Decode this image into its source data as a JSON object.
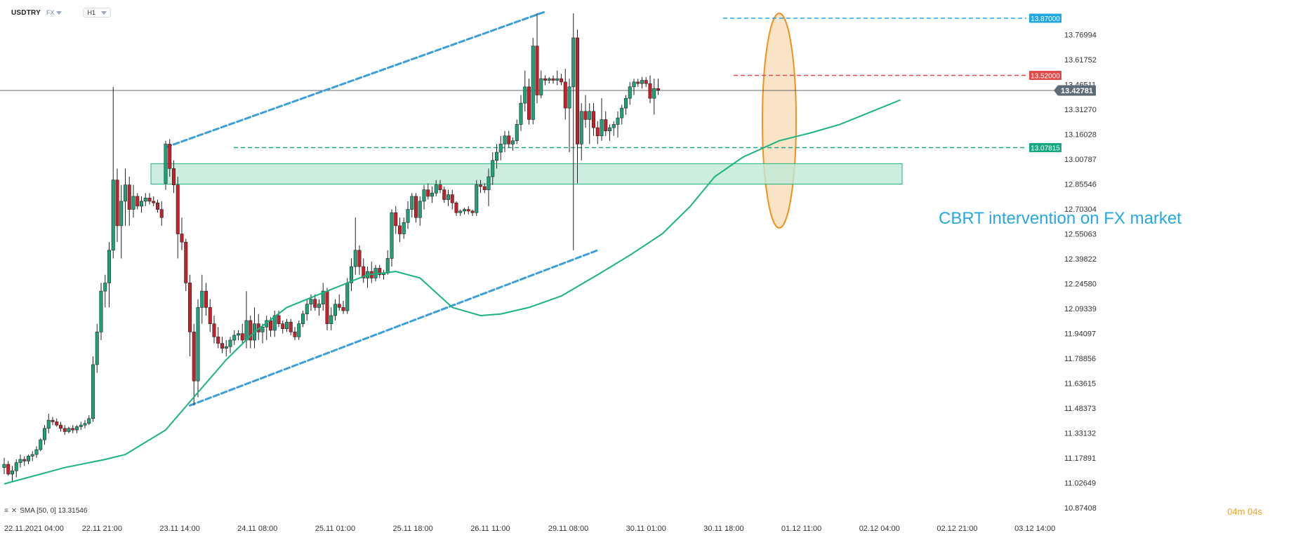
{
  "toolbar": {
    "symbol": "USDTRY",
    "source": "FX",
    "timeframe": "H1"
  },
  "indicator_label": "SMA [50, 0] 13.31546",
  "countdown": {
    "minutes": "04",
    "seconds": "04"
  },
  "annotation": "CBRT intervention on FX market",
  "colors": {
    "up": "#1fa27a",
    "down": "#c8202a",
    "sma": "#19b47e",
    "channel": "#3d9fd9",
    "level_top": "#1ea7e0",
    "level_resist": "#e24a4a",
    "level_support": "#17a883",
    "zone_fill": "#bfe9d8",
    "zone_border": "#22b37c",
    "ellipse_fill": "#f7d9b0",
    "ellipse_border": "#f0921e",
    "current_price": "#5d6b78"
  },
  "chart_data": {
    "type": "candlestick",
    "title": "",
    "yaxis": {
      "ticks": [
        "13.76994",
        "13.61752",
        "13.46511",
        "13.31270",
        "13.16028",
        "13.00787",
        "12.85546",
        "12.70304",
        "12.55063",
        "12.39822",
        "12.24580",
        "12.09339",
        "11.94097",
        "11.78856",
        "11.63615",
        "11.48373",
        "11.33132",
        "11.17891",
        "11.02649",
        "10.87408"
      ],
      "range": [
        10.87408,
        13.86
      ]
    },
    "xaxis": {
      "ticks": [
        "22.11.2021  04:00",
        "22.11  21:00",
        "23.11  14:00",
        "24.11  08:00",
        "25.11  01:00",
        "25.11  18:00",
        "26.11  11:00",
        "29.11  08:00",
        "30.11  01:00",
        "30.11  18:00",
        "01.12  11:00",
        "02.12  04:00",
        "02.12  21:00",
        "03.12  14:00"
      ]
    },
    "price_tags": [
      {
        "name": "top-level",
        "value": "13.87000",
        "price": 13.87
      },
      {
        "name": "resistance",
        "value": "13.52000",
        "price": 13.52
      },
      {
        "name": "current",
        "value": "13.42781",
        "price": 13.42781
      },
      {
        "name": "support",
        "value": "13.07815",
        "price": 13.07815
      }
    ],
    "zone": {
      "from_price": 12.855,
      "to_price": 12.98
    },
    "channel": {
      "upper": [
        [
          40,
          13.08
        ],
        [
          134,
          13.91
        ]
      ],
      "lower": [
        [
          46,
          11.5
        ],
        [
          147,
          12.45
        ]
      ]
    },
    "candles": [
      [
        11.12,
        11.18,
        11.08,
        11.14
      ],
      [
        11.14,
        11.16,
        11.07,
        11.08
      ],
      [
        11.08,
        11.13,
        11.03,
        11.1
      ],
      [
        11.1,
        11.17,
        11.06,
        11.15
      ],
      [
        11.15,
        11.2,
        11.12,
        11.17
      ],
      [
        11.17,
        11.19,
        11.13,
        11.16
      ],
      [
        11.16,
        11.2,
        11.14,
        11.19
      ],
      [
        11.19,
        11.22,
        11.16,
        11.2
      ],
      [
        11.2,
        11.25,
        11.18,
        11.23
      ],
      [
        11.23,
        11.3,
        11.22,
        11.29
      ],
      [
        11.29,
        11.38,
        11.26,
        11.36
      ],
      [
        11.36,
        11.45,
        11.33,
        11.41
      ],
      [
        11.41,
        11.43,
        11.38,
        11.4
      ],
      [
        11.4,
        11.42,
        11.37,
        11.38
      ],
      [
        11.38,
        11.4,
        11.34,
        11.36
      ],
      [
        11.36,
        11.38,
        11.32,
        11.34
      ],
      [
        11.34,
        11.37,
        11.33,
        11.36
      ],
      [
        11.36,
        11.38,
        11.33,
        11.35
      ],
      [
        11.35,
        11.38,
        11.33,
        11.37
      ],
      [
        11.37,
        11.4,
        11.35,
        11.38
      ],
      [
        11.38,
        11.41,
        11.36,
        11.39
      ],
      [
        11.39,
        11.44,
        11.38,
        11.42
      ],
      [
        11.42,
        11.8,
        11.4,
        11.75
      ],
      [
        11.75,
        12.0,
        11.7,
        11.95
      ],
      [
        11.95,
        12.25,
        11.9,
        12.2
      ],
      [
        12.2,
        12.3,
        12.1,
        12.25
      ],
      [
        12.25,
        12.5,
        12.1,
        12.45
      ],
      [
        12.45,
        13.45,
        12.4,
        12.88
      ],
      [
        12.88,
        12.95,
        12.5,
        12.6
      ],
      [
        12.6,
        12.85,
        12.4,
        12.75
      ],
      [
        12.75,
        12.95,
        12.6,
        12.85
      ],
      [
        12.85,
        12.9,
        12.6,
        12.7
      ],
      [
        12.7,
        12.85,
        12.65,
        12.78
      ],
      [
        12.78,
        12.8,
        12.7,
        12.72
      ],
      [
        12.72,
        12.78,
        12.68,
        12.75
      ],
      [
        12.75,
        12.8,
        12.72,
        12.77
      ],
      [
        12.77,
        12.8,
        12.73,
        12.75
      ],
      [
        12.75,
        12.78,
        12.72,
        12.74
      ],
      [
        12.74,
        12.76,
        12.68,
        12.7
      ],
      [
        12.7,
        12.75,
        12.6,
        12.65
      ],
      [
        12.86,
        13.12,
        12.82,
        13.1
      ],
      [
        13.1,
        13.13,
        12.9,
        12.95
      ],
      [
        12.95,
        13.0,
        12.8,
        12.85
      ],
      [
        12.85,
        12.9,
        12.4,
        12.55
      ],
      [
        12.55,
        12.65,
        12.45,
        12.5
      ],
      [
        12.5,
        12.52,
        12.2,
        12.25
      ],
      [
        12.25,
        12.3,
        11.8,
        11.95
      ],
      [
        11.95,
        12.0,
        11.5,
        11.65
      ],
      [
        11.65,
        12.15,
        11.55,
        12.1
      ],
      [
        12.1,
        12.3,
        12.0,
        12.2
      ],
      [
        12.2,
        12.25,
        12.05,
        12.1
      ],
      [
        12.1,
        12.15,
        11.95,
        12.0
      ],
      [
        12.0,
        12.05,
        11.88,
        11.92
      ],
      [
        11.92,
        11.98,
        11.85,
        11.88
      ],
      [
        11.88,
        11.92,
        11.82,
        11.85
      ],
      [
        11.85,
        11.9,
        11.8,
        11.86
      ],
      [
        11.86,
        11.92,
        11.82,
        11.9
      ],
      [
        11.9,
        11.96,
        11.87,
        11.93
      ],
      [
        11.93,
        11.96,
        11.9,
        11.94
      ],
      [
        11.94,
        12.0,
        11.88,
        11.9
      ],
      [
        11.9,
        12.2,
        11.85,
        12.02
      ],
      [
        12.02,
        12.05,
        11.85,
        11.9
      ],
      [
        11.9,
        12.1,
        11.85,
        12.0
      ],
      [
        12.0,
        12.06,
        11.9,
        11.95
      ],
      [
        11.95,
        12.0,
        11.88,
        11.98
      ],
      [
        11.98,
        12.05,
        11.9,
        12.02
      ],
      [
        12.02,
        12.04,
        11.92,
        11.96
      ],
      [
        11.96,
        12.08,
        11.92,
        12.05
      ],
      [
        12.05,
        12.08,
        11.98,
        12.0
      ],
      [
        12.0,
        12.02,
        11.94,
        11.97
      ],
      [
        11.97,
        12.03,
        11.95,
        12.01
      ],
      [
        12.01,
        12.03,
        11.93,
        11.95
      ],
      [
        11.95,
        11.98,
        11.9,
        11.92
      ],
      [
        11.92,
        12.02,
        11.9,
        12.0
      ],
      [
        12.0,
        12.08,
        11.98,
        12.06
      ],
      [
        12.06,
        12.15,
        12.02,
        12.12
      ],
      [
        12.12,
        12.18,
        12.08,
        12.15
      ],
      [
        12.15,
        12.18,
        12.08,
        12.1
      ],
      [
        12.1,
        12.15,
        12.05,
        12.12
      ],
      [
        12.12,
        12.25,
        12.08,
        12.2
      ],
      [
        12.2,
        12.22,
        11.96,
        12.0
      ],
      [
        12.0,
        12.1,
        11.96,
        12.05
      ],
      [
        12.05,
        12.15,
        12.02,
        12.12
      ],
      [
        12.12,
        12.18,
        12.08,
        12.1
      ],
      [
        12.1,
        12.14,
        12.06,
        12.08
      ],
      [
        12.08,
        12.28,
        12.06,
        12.25
      ],
      [
        12.25,
        12.4,
        12.2,
        12.35
      ],
      [
        12.35,
        12.65,
        12.3,
        12.45
      ],
      [
        12.45,
        12.48,
        12.3,
        12.35
      ],
      [
        12.35,
        12.4,
        12.25,
        12.28
      ],
      [
        12.28,
        12.35,
        12.22,
        12.32
      ],
      [
        12.32,
        12.38,
        12.25,
        12.28
      ],
      [
        12.28,
        12.36,
        12.26,
        12.34
      ],
      [
        12.34,
        12.36,
        12.28,
        12.3
      ],
      [
        12.3,
        12.33,
        12.27,
        12.31
      ],
      [
        12.31,
        12.45,
        12.3,
        12.4
      ],
      [
        12.4,
        12.7,
        12.35,
        12.68
      ],
      [
        12.68,
        12.72,
        12.55,
        12.6
      ],
      [
        12.6,
        12.65,
        12.5,
        12.55
      ],
      [
        12.55,
        12.65,
        12.52,
        12.62
      ],
      [
        12.62,
        12.75,
        12.58,
        12.7
      ],
      [
        12.7,
        12.8,
        12.65,
        12.78
      ],
      [
        12.78,
        12.8,
        12.62,
        12.65
      ],
      [
        12.65,
        12.78,
        12.6,
        12.75
      ],
      [
        12.75,
        12.85,
        12.7,
        12.82
      ],
      [
        12.82,
        12.86,
        12.76,
        12.78
      ],
      [
        12.78,
        12.84,
        12.74,
        12.8
      ],
      [
        12.8,
        12.88,
        12.78,
        12.85
      ],
      [
        12.85,
        12.88,
        12.8,
        12.82
      ],
      [
        12.82,
        12.84,
        12.74,
        12.76
      ],
      [
        12.76,
        12.82,
        12.72,
        12.79
      ],
      [
        12.79,
        12.82,
        12.7,
        12.74
      ],
      [
        12.74,
        12.75,
        12.66,
        12.68
      ],
      [
        12.68,
        12.7,
        12.66,
        12.69
      ],
      [
        12.69,
        12.71,
        12.67,
        12.7
      ],
      [
        12.7,
        12.72,
        12.67,
        12.69
      ],
      [
        12.69,
        12.7,
        12.66,
        12.68
      ],
      [
        12.68,
        12.88,
        12.66,
        12.85
      ],
      [
        12.85,
        12.88,
        12.8,
        12.84
      ],
      [
        12.84,
        12.86,
        12.8,
        12.82
      ],
      [
        12.82,
        12.95,
        12.72,
        12.9
      ],
      [
        12.9,
        13.05,
        12.85,
        13.0
      ],
      [
        13.0,
        13.1,
        12.95,
        13.05
      ],
      [
        13.05,
        13.15,
        13.0,
        13.1
      ],
      [
        13.1,
        13.18,
        13.05,
        13.15
      ],
      [
        13.15,
        13.18,
        13.08,
        13.1
      ],
      [
        13.1,
        13.14,
        13.06,
        13.12
      ],
      [
        13.12,
        13.25,
        13.1,
        13.22
      ],
      [
        13.22,
        13.4,
        13.18,
        13.35
      ],
      [
        13.35,
        13.55,
        13.3,
        13.45
      ],
      [
        13.45,
        13.5,
        13.22,
        13.25
      ],
      [
        13.25,
        13.75,
        13.22,
        13.7
      ],
      [
        13.7,
        13.9,
        13.35,
        13.4
      ],
      [
        13.4,
        13.55,
        13.38,
        13.5
      ],
      [
        13.5,
        13.52,
        13.46,
        13.49
      ],
      [
        13.49,
        13.51,
        13.47,
        13.5
      ],
      [
        13.5,
        13.52,
        13.47,
        13.49
      ],
      [
        13.49,
        13.55,
        13.46,
        13.5
      ],
      [
        13.5,
        13.53,
        13.46,
        13.48
      ],
      [
        13.48,
        13.56,
        13.25,
        13.32
      ],
      [
        13.32,
        13.5,
        13.05,
        13.45
      ],
      [
        13.45,
        13.9,
        12.45,
        13.75
      ],
      [
        13.75,
        13.8,
        12.86,
        13.1
      ],
      [
        13.1,
        13.35,
        13.0,
        13.3
      ],
      [
        13.3,
        13.4,
        13.2,
        13.25
      ],
      [
        13.25,
        13.35,
        13.1,
        13.3
      ],
      [
        13.3,
        13.35,
        13.15,
        13.2
      ],
      [
        13.2,
        13.24,
        13.1,
        13.15
      ],
      [
        13.15,
        13.38,
        13.12,
        13.25
      ],
      [
        13.25,
        13.3,
        13.15,
        13.18
      ],
      [
        13.18,
        13.22,
        13.12,
        13.2
      ],
      [
        13.2,
        13.24,
        13.15,
        13.22
      ],
      [
        13.22,
        13.3,
        13.14,
        13.26
      ],
      [
        13.26,
        13.34,
        13.22,
        13.32
      ],
      [
        13.32,
        13.4,
        13.28,
        13.38
      ],
      [
        13.38,
        13.48,
        13.34,
        13.45
      ],
      [
        13.45,
        13.5,
        13.4,
        13.48
      ],
      [
        13.48,
        13.5,
        13.45,
        13.47
      ],
      [
        13.47,
        13.51,
        13.44,
        13.49
      ],
      [
        13.49,
        13.51,
        13.45,
        13.47
      ],
      [
        13.47,
        13.52,
        13.35,
        13.38
      ],
      [
        13.38,
        13.5,
        13.28,
        13.44
      ],
      [
        13.44,
        13.5,
        13.4,
        13.43
      ]
    ],
    "sma": [
      [
        0,
        11.02
      ],
      [
        15,
        11.12
      ],
      [
        25,
        11.17
      ],
      [
        30,
        11.2
      ],
      [
        40,
        11.35
      ],
      [
        48,
        11.58
      ],
      [
        55,
        11.78
      ],
      [
        62,
        11.95
      ],
      [
        70,
        12.1
      ],
      [
        80,
        12.2
      ],
      [
        90,
        12.3
      ],
      [
        97,
        12.32
      ],
      [
        103,
        12.28
      ],
      [
        111,
        12.1
      ],
      [
        118,
        12.05
      ],
      [
        123,
        12.06
      ],
      [
        130,
        12.1
      ],
      [
        138,
        12.17
      ],
      [
        147,
        12.3
      ],
      [
        155,
        12.42
      ],
      [
        163,
        12.55
      ],
      [
        170,
        12.72
      ],
      [
        176,
        12.9
      ],
      [
        183,
        13.02
      ],
      [
        192,
        13.12
      ],
      [
        200,
        13.17
      ],
      [
        207,
        13.22
      ],
      [
        215,
        13.3
      ],
      [
        222,
        13.37
      ]
    ]
  }
}
